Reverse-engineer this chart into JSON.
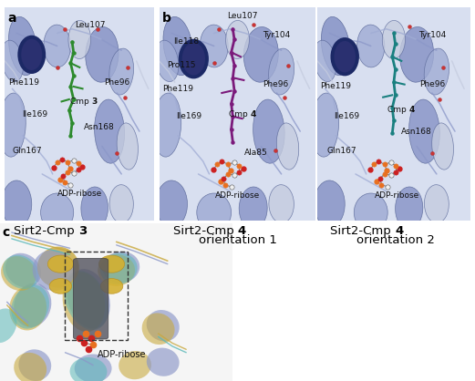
{
  "panel_a_label": "a",
  "panel_b_label": "b",
  "panel_c_label": "c",
  "bg_color": "#ffffff",
  "protein_blue": "#8b97c8",
  "protein_blue2": "#a0acd4",
  "protein_blue3": "#c5ccdf",
  "dark_navy": "#1c2966",
  "cmp3_color": "#2d8a2d",
  "cmp4_o1_color": "#7b1a7b",
  "cmp4_o2_color": "#1a8080",
  "adp_orange": "#e87020",
  "adp_red": "#cc2020",
  "adp_white": "#f0f0f0",
  "label_leu107": "Leu107",
  "label_phe119": "Phe119",
  "label_phe96": "Phe96",
  "label_ile169": "Ile169",
  "label_asn168": "Asn168",
  "label_gln167": "Gln167",
  "label_adp": "ADP-ribose",
  "label_tyr104": "Tyr104",
  "label_ile118": "Ile118",
  "label_pro115": "Pro115",
  "label_ala85": "Ala85",
  "panel_font_size": 10,
  "label_font_size": 6.5,
  "caption_font_size": 9.5
}
